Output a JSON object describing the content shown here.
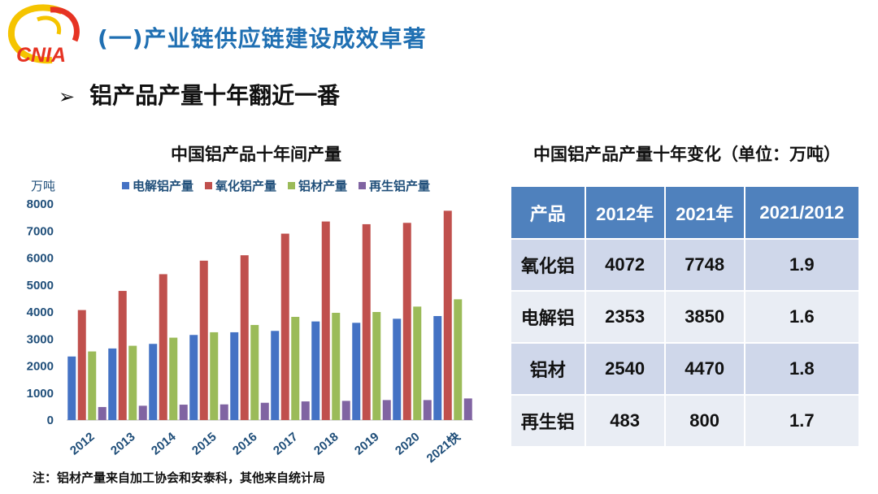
{
  "header": {
    "logo_text": "CNIA",
    "section_title": "(一)产业链供应链建设成效卓著",
    "sub_title": "铝产品产量十年翻近一番"
  },
  "chart_data": {
    "type": "bar",
    "title": "中国铝产品十年间产量",
    "ylabel": "万吨",
    "ylim": [
      0,
      8000
    ],
    "yticks": [
      "0",
      "1000",
      "2000",
      "3000",
      "4000",
      "5000",
      "6000",
      "7000",
      "8000"
    ],
    "legend_position": "top",
    "grid": false,
    "categories": [
      "2012",
      "2013",
      "2014",
      "2015",
      "2016",
      "2017",
      "2018",
      "2019",
      "2020",
      "2021快"
    ],
    "series": [
      {
        "name": "电解铝产量",
        "color": "#4472c4",
        "values": [
          2353,
          2650,
          2820,
          3150,
          3250,
          3300,
          3650,
          3600,
          3750,
          3850
        ]
      },
      {
        "name": "氧化铝产量",
        "color": "#c0504d",
        "values": [
          4072,
          4780,
          5400,
          5900,
          6100,
          6900,
          7350,
          7250,
          7300,
          7748
        ]
      },
      {
        "name": "铝材产量",
        "color": "#9bbb59",
        "values": [
          2540,
          2750,
          3050,
          3250,
          3520,
          3820,
          3970,
          4000,
          4200,
          4470
        ]
      },
      {
        "name": "再生铝产量",
        "color": "#8064a2",
        "values": [
          483,
          530,
          570,
          580,
          640,
          690,
          710,
          740,
          740,
          800
        ]
      }
    ]
  },
  "note": "注：铝材产量来自加工协会和安泰科，其他来自统计局",
  "table": {
    "title": "中国铝产品产量十年变化（单位：万吨）",
    "headers": [
      "产品",
      "2012年",
      "2021年",
      "2021/2012"
    ],
    "rows": [
      [
        "氧化铝",
        "4072",
        "7748",
        "1.9"
      ],
      [
        "电解铝",
        "2353",
        "3850",
        "1.6"
      ],
      [
        "铝材",
        "2540",
        "4470",
        "1.8"
      ],
      [
        "再生铝",
        "483",
        "800",
        "1.7"
      ]
    ]
  }
}
